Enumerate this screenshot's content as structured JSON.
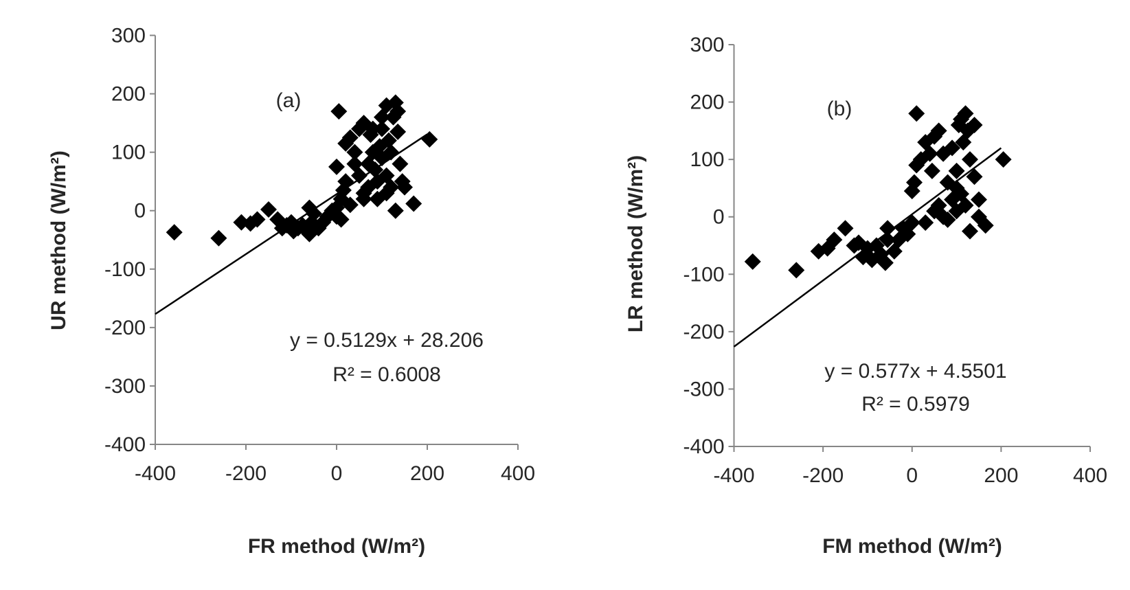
{
  "chart_data": [
    {
      "type": "scatter",
      "panel_label": "(a)",
      "xlabel": "FR method (W/m²)",
      "ylabel": "UR method (W/m²)",
      "xlim": [
        -400,
        400
      ],
      "ylim": [
        -400,
        300
      ],
      "xticks": [
        "-400",
        "-200",
        "0",
        "200",
        "400"
      ],
      "yticks": [
        "300",
        "200",
        "100",
        "0",
        "-100",
        "-200",
        "-300",
        "-400"
      ],
      "marker": "diamond",
      "marker_color": "#000000",
      "trendline": {
        "slope": 0.5129,
        "intercept": 28.206,
        "x_range": [
          -400,
          200
        ]
      },
      "equation": "y = 0.5129x + 28.206",
      "r2": "R² = 0.6008",
      "points": [
        [
          -358,
          -37
        ],
        [
          -260,
          -47
        ],
        [
          -210,
          -20
        ],
        [
          -190,
          -22
        ],
        [
          -175,
          -15
        ],
        [
          -150,
          2
        ],
        [
          -130,
          -15
        ],
        [
          -120,
          -30
        ],
        [
          -110,
          -25
        ],
        [
          -100,
          -20
        ],
        [
          -95,
          -35
        ],
        [
          -85,
          -30
        ],
        [
          -75,
          -25
        ],
        [
          -65,
          -35
        ],
        [
          -60,
          -40
        ],
        [
          -55,
          -20
        ],
        [
          -60,
          5
        ],
        [
          -50,
          -5
        ],
        [
          -40,
          -30
        ],
        [
          -30,
          -20
        ],
        [
          -20,
          -10
        ],
        [
          -10,
          0
        ],
        [
          0,
          5
        ],
        [
          0,
          -10
        ],
        [
          10,
          -15
        ],
        [
          10,
          20
        ],
        [
          15,
          35
        ],
        [
          20,
          50
        ],
        [
          0,
          75
        ],
        [
          5,
          170
        ],
        [
          20,
          115
        ],
        [
          30,
          125
        ],
        [
          40,
          80
        ],
        [
          40,
          100
        ],
        [
          50,
          60
        ],
        [
          50,
          140
        ],
        [
          60,
          150
        ],
        [
          60,
          20
        ],
        [
          70,
          40
        ],
        [
          75,
          130
        ],
        [
          80,
          100
        ],
        [
          85,
          70
        ],
        [
          90,
          50
        ],
        [
          95,
          110
        ],
        [
          100,
          90
        ],
        [
          100,
          140
        ],
        [
          110,
          180
        ],
        [
          110,
          60
        ],
        [
          115,
          120
        ],
        [
          120,
          40
        ],
        [
          125,
          160
        ],
        [
          130,
          185
        ],
        [
          135,
          170
        ],
        [
          135,
          135
        ],
        [
          140,
          80
        ],
        [
          145,
          50
        ],
        [
          150,
          40
        ],
        [
          130,
          0
        ],
        [
          170,
          12
        ],
        [
          205,
          122
        ],
        [
          60,
          30
        ],
        [
          30,
          10
        ],
        [
          70,
          80
        ],
        [
          90,
          20
        ],
        [
          110,
          30
        ],
        [
          120,
          100
        ],
        [
          100,
          160
        ],
        [
          80,
          140
        ]
      ]
    },
    {
      "type": "scatter",
      "panel_label": "(b)",
      "xlabel": "FM method (W/m²)",
      "ylabel": "LR method (W/m²)",
      "xlim": [
        -400,
        400
      ],
      "ylim": [
        -400,
        300
      ],
      "xticks": [
        "-400",
        "-200",
        "0",
        "200",
        "400"
      ],
      "yticks": [
        "300",
        "200",
        "100",
        "0",
        "-100",
        "-200",
        "-300",
        "-400"
      ],
      "marker": "diamond",
      "marker_color": "#000000",
      "trendline": {
        "slope": 0.577,
        "intercept": 4.5501,
        "x_range": [
          -400,
          200
        ]
      },
      "equation": "y = 0.577x + 4.5501",
      "r2": "R² = 0.5979",
      "points": [
        [
          -358,
          -78
        ],
        [
          -260,
          -93
        ],
        [
          -210,
          -60
        ],
        [
          -190,
          -55
        ],
        [
          -175,
          -40
        ],
        [
          -150,
          -20
        ],
        [
          -130,
          -50
        ],
        [
          -120,
          -45
        ],
        [
          -110,
          -70
        ],
        [
          -100,
          -55
        ],
        [
          -90,
          -75
        ],
        [
          -80,
          -50
        ],
        [
          -70,
          -65
        ],
        [
          -60,
          -80
        ],
        [
          -55,
          -40
        ],
        [
          -55,
          -20
        ],
        [
          -40,
          -60
        ],
        [
          -30,
          -40
        ],
        [
          -20,
          -20
        ],
        [
          -10,
          -30
        ],
        [
          0,
          -10
        ],
        [
          0,
          45
        ],
        [
          5,
          60
        ],
        [
          10,
          180
        ],
        [
          10,
          90
        ],
        [
          20,
          100
        ],
        [
          30,
          130
        ],
        [
          40,
          110
        ],
        [
          45,
          80
        ],
        [
          50,
          140
        ],
        [
          60,
          150
        ],
        [
          60,
          20
        ],
        [
          70,
          0
        ],
        [
          70,
          110
        ],
        [
          80,
          60
        ],
        [
          90,
          30
        ],
        [
          90,
          120
        ],
        [
          100,
          50
        ],
        [
          100,
          80
        ],
        [
          105,
          160
        ],
        [
          110,
          170
        ],
        [
          115,
          130
        ],
        [
          120,
          180
        ],
        [
          125,
          150
        ],
        [
          130,
          100
        ],
        [
          130,
          -25
        ],
        [
          140,
          70
        ],
        [
          140,
          160
        ],
        [
          150,
          30
        ],
        [
          165,
          -15
        ],
        [
          205,
          100
        ],
        [
          30,
          -10
        ],
        [
          50,
          10
        ],
        [
          80,
          -5
        ],
        [
          100,
          10
        ],
        [
          110,
          40
        ],
        [
          120,
          20
        ],
        [
          150,
          0
        ]
      ]
    }
  ]
}
